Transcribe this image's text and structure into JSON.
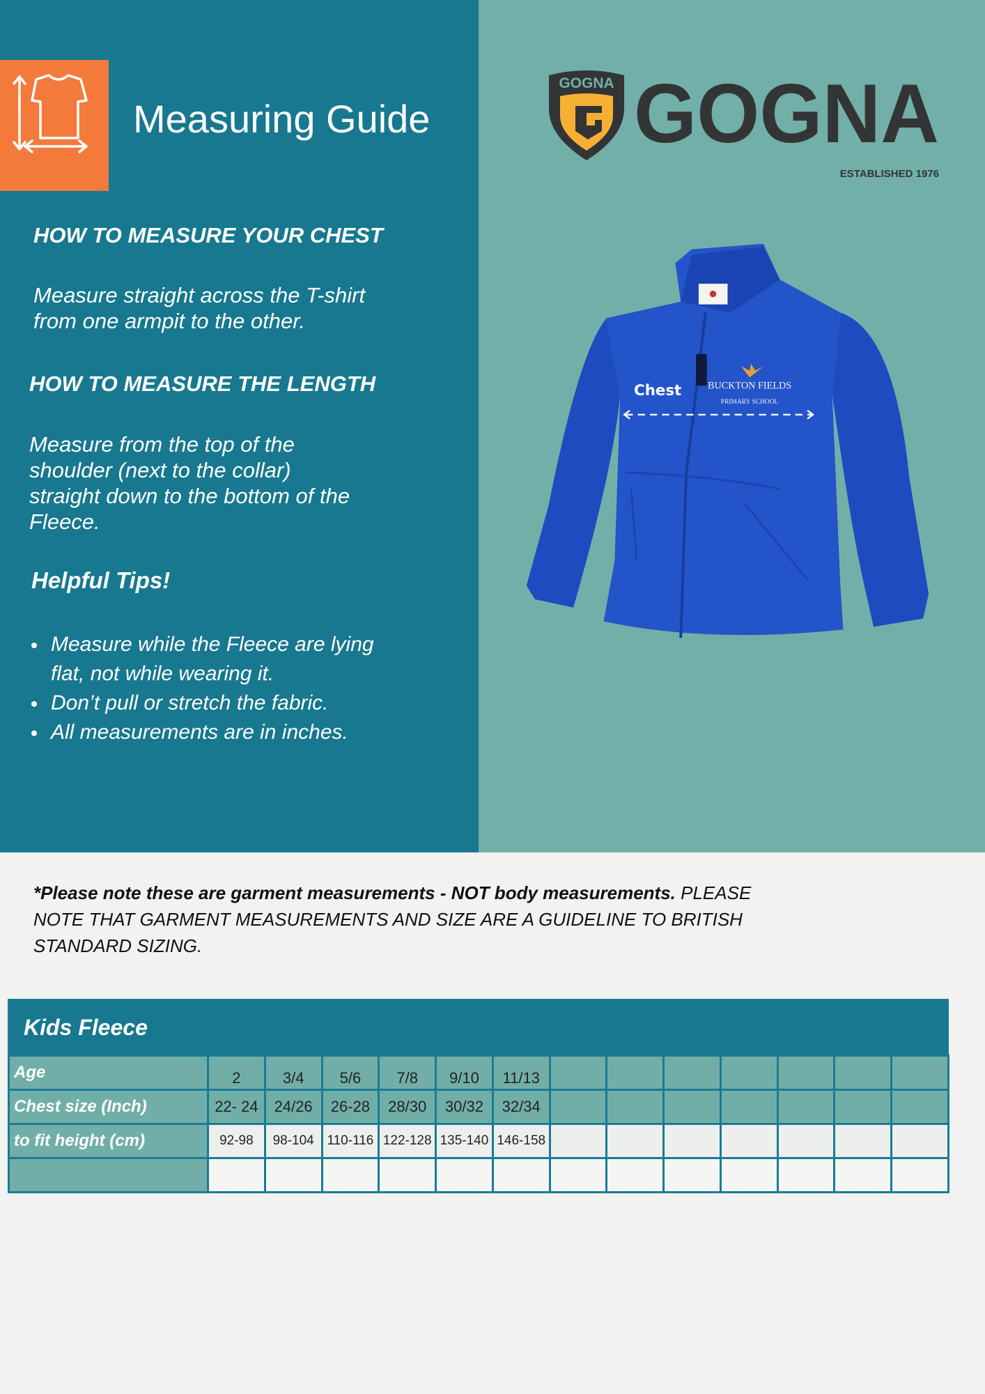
{
  "header": {
    "title": "Measuring Guide",
    "icon": "tshirt-measure-icon"
  },
  "guide": {
    "chest_heading": "HOW TO MEASURE YOUR CHEST",
    "chest_lines": [
      "Measure straight across the T-shirt",
      "from one armpit to the other."
    ],
    "length_heading": "HOW TO MEASURE THE LENGTH",
    "length_lines": [
      "Measure from the top of the",
      "shoulder (next to the collar)",
      "straight down to the bottom of the",
      "Fleece."
    ],
    "tips_heading": "Helpful Tips!",
    "tips": [
      "Measure while the Fleece are lying",
      "flat, not while wearing it.",
      "Don’t pull or stretch the fabric.",
      "All measurements are in inches."
    ]
  },
  "brand": {
    "shield_text": "GOGNA",
    "name": "GOGNA",
    "tagline": "ESTABLISHED 1976"
  },
  "product": {
    "chest_label": "Chest",
    "embroidery_line1": "BUCKTON FIELDS",
    "embroidery_line2": "PRIMARY SCHOOL"
  },
  "note": {
    "bold": "*Please note these are garment measurements - NOT body measurements.",
    "rest": " PLEASE NOTE THAT GARMENT MEASUREMENTS AND SIZE ARE A GUIDELINE TO BRITISH STANDARD SIZING."
  },
  "table": {
    "title": "Kids Fleece",
    "rows": [
      {
        "label": "Age",
        "values": [
          "2",
          "3/4",
          "5/6",
          "7/8",
          "9/10",
          "11/13",
          "",
          "",
          "",
          "",
          "",
          "",
          ""
        ]
      },
      {
        "label": "Chest size (Inch)",
        "values": [
          "22- 24",
          "24/26",
          "26-28",
          "28/30",
          "30/32",
          "32/34",
          "",
          "",
          "",
          "",
          "",
          "",
          ""
        ]
      },
      {
        "label": "to fit height  (cm)",
        "values": [
          "92-98",
          "98-104",
          "110-116",
          "122-128",
          "135-140",
          "146-158",
          "",
          "",
          "",
          "",
          "",
          "",
          ""
        ]
      },
      {
        "label": "",
        "values": [
          "",
          "",
          "",
          "",
          "",
          "",
          "",
          "",
          "",
          "",
          "",
          "",
          ""
        ]
      }
    ]
  },
  "colors": {
    "left_panel": "#17788f",
    "right_panel": "#72afa8",
    "accent": "#f47a3c",
    "jacket": "#1f4fc4"
  }
}
